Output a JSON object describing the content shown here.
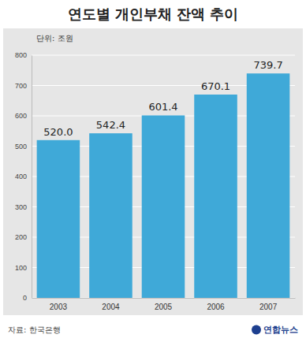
{
  "chart_data": {
    "type": "bar",
    "title": "연도별 개인부채 잔액 추이",
    "subtitle": "단위: 조원",
    "categories": [
      "2003",
      "2004",
      "2005",
      "2006",
      "2007"
    ],
    "values": [
      520.0,
      542.4,
      601.4,
      670.1,
      739.7
    ],
    "value_labels": [
      "520.0",
      "542.4",
      "601.4",
      "670.1",
      "739.7"
    ],
    "data_labels": true,
    "color": "#3fa9d8",
    "ylim": [
      0,
      800
    ],
    "yticks": [
      0,
      100,
      200,
      300,
      400,
      500,
      600,
      700,
      800
    ],
    "grid": true,
    "source": "자료: 한국은행",
    "credit": "연합뉴스"
  }
}
